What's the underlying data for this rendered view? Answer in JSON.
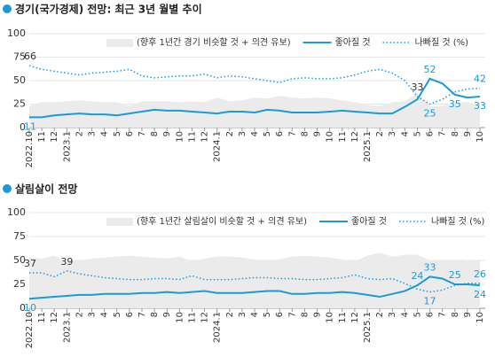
{
  "chart_data": [
    {
      "type": "line",
      "title": "경기(국가경제) 전망:  최근 3년 월별 추이",
      "categories": [
        "2022.10",
        "11",
        "12",
        "2023.1",
        "2",
        "3",
        "4",
        "5",
        "6",
        "7",
        "8",
        "9",
        "10",
        "11",
        "12",
        "2024.1",
        "2",
        "3",
        "4",
        "5",
        "6",
        "7",
        "8",
        "9",
        "10",
        "11",
        "12",
        "2025.1",
        "2",
        "3",
        "4",
        "5",
        "6",
        "7",
        "8",
        "9",
        "10"
      ],
      "ylim": [
        0,
        100
      ],
      "yticks": [
        0,
        25,
        50,
        75,
        100
      ],
      "grid": true,
      "series": [
        {
          "name": "(향후 1년간 경기 비슷할 것 + 의견 유보)",
          "style": "area",
          "color": "#ebebeb",
          "values": [
            23,
            27,
            27,
            28,
            29,
            28,
            27,
            27,
            23,
            28,
            28,
            28,
            27,
            28,
            27,
            32,
            28,
            29,
            32,
            31,
            34,
            32,
            31,
            32,
            31,
            29,
            27,
            24,
            23,
            27,
            28,
            37,
            23,
            23,
            27,
            27,
            25
          ]
        },
        {
          "name": "좋아질 것",
          "style": "solid",
          "color": "#1a9bd7",
          "values": [
            11,
            11,
            13,
            14,
            15,
            14,
            14,
            13,
            15,
            17,
            19,
            18,
            18,
            17,
            16,
            15,
            17,
            17,
            16,
            19,
            18,
            16,
            16,
            16,
            17,
            18,
            17,
            16,
            15,
            15,
            22,
            30,
            52,
            47,
            35,
            32,
            33
          ],
          "value_labels": [
            "11",
            null,
            null,
            null,
            null,
            null,
            null,
            null,
            null,
            null,
            null,
            null,
            null,
            null,
            null,
            null,
            null,
            null,
            null,
            null,
            null,
            null,
            null,
            null,
            null,
            null,
            null,
            null,
            null,
            null,
            null,
            null,
            "52",
            null,
            "35",
            null,
            "33"
          ]
        },
        {
          "name": "나빠질 것 (%)",
          "style": "dotted",
          "color": "#1a9bd7",
          "values": [
            66,
            62,
            60,
            58,
            56,
            58,
            59,
            60,
            62,
            55,
            53,
            54,
            55,
            55,
            57,
            53,
            55,
            54,
            52,
            50,
            48,
            52,
            53,
            52,
            52,
            53,
            56,
            60,
            62,
            58,
            50,
            33,
            25,
            30,
            38,
            41,
            42
          ],
          "value_labels": [
            "66",
            null,
            null,
            null,
            null,
            null,
            null,
            null,
            null,
            null,
            null,
            null,
            null,
            null,
            null,
            null,
            null,
            null,
            null,
            null,
            null,
            null,
            null,
            null,
            null,
            null,
            null,
            null,
            null,
            null,
            null,
            "33",
            "25",
            null,
            null,
            null,
            "42"
          ]
        }
      ]
    },
    {
      "type": "line",
      "title": "살림살이 전망",
      "categories": [
        "2022.10",
        "11",
        "12",
        "2023.1",
        "2",
        "3",
        "4",
        "5",
        "6",
        "7",
        "8",
        "9",
        "10",
        "11",
        "12",
        "2024.1",
        "2",
        "3",
        "4",
        "5",
        "6",
        "7",
        "8",
        "9",
        "10",
        "11",
        "12",
        "2025.1",
        "2",
        "3",
        "4",
        "5",
        "6",
        "7",
        "8",
        "9",
        "10"
      ],
      "ylim": [
        0,
        100
      ],
      "yticks": [
        0,
        25,
        50,
        75,
        100
      ],
      "grid": true,
      "series": [
        {
          "name": "(향후 1년간 살림살이 비슷할 것 + 의견 유보)",
          "style": "area",
          "color": "#ebebeb",
          "values": [
            53,
            52,
            55,
            48,
            50,
            52,
            53,
            54,
            55,
            54,
            53,
            52,
            54,
            49,
            52,
            54,
            54,
            53,
            51,
            50,
            51,
            54,
            55,
            54,
            53,
            51,
            49,
            55,
            58,
            54,
            56,
            56,
            50,
            50,
            51,
            49,
            50
          ]
        },
        {
          "name": "좋아질 것",
          "style": "solid",
          "color": "#1a9bd7",
          "values": [
            10,
            11,
            12,
            13,
            14,
            14,
            15,
            15,
            15,
            16,
            16,
            17,
            16,
            17,
            18,
            16,
            16,
            16,
            17,
            18,
            18,
            15,
            15,
            16,
            16,
            17,
            16,
            14,
            12,
            15,
            18,
            24,
            33,
            31,
            25,
            25,
            24
          ],
          "value_labels": [
            "10",
            null,
            null,
            null,
            null,
            null,
            null,
            null,
            null,
            null,
            null,
            null,
            null,
            null,
            null,
            null,
            null,
            null,
            null,
            null,
            null,
            null,
            null,
            null,
            null,
            null,
            null,
            null,
            null,
            null,
            null,
            "24",
            "33",
            null,
            "25",
            null,
            "24"
          ]
        },
        {
          "name": "나빠질 것 (%)",
          "style": "dotted",
          "color": "#1a9bd7",
          "values": [
            37,
            37,
            33,
            39,
            36,
            34,
            32,
            31,
            30,
            30,
            31,
            31,
            30,
            34,
            30,
            30,
            30,
            31,
            32,
            32,
            31,
            31,
            30,
            30,
            31,
            32,
            35,
            31,
            30,
            31,
            26,
            20,
            17,
            19,
            24,
            26,
            26
          ],
          "value_labels": [
            "37",
            null,
            null,
            "39",
            null,
            null,
            null,
            null,
            null,
            null,
            null,
            null,
            null,
            null,
            null,
            null,
            null,
            null,
            null,
            null,
            null,
            null,
            null,
            null,
            null,
            null,
            null,
            null,
            null,
            null,
            null,
            null,
            "17",
            null,
            null,
            null,
            "26"
          ]
        }
      ]
    }
  ]
}
